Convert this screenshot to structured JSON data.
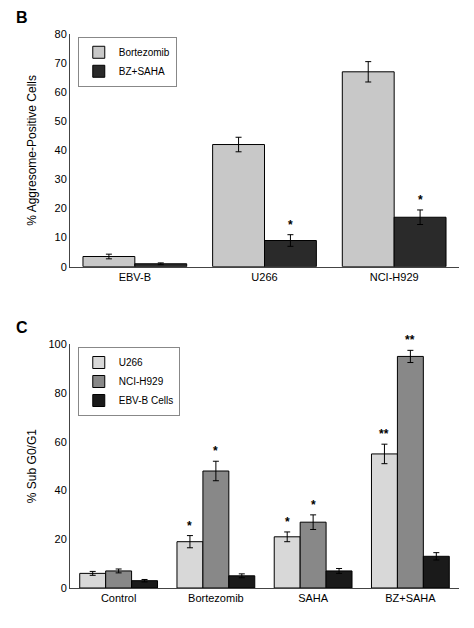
{
  "chart_data": [
    {
      "type": "bar",
      "title": "B",
      "ylabel": "% Aggresome-Positive Cells",
      "categories": [
        "EBV-B",
        "U266",
        "NCI-H929"
      ],
      "series": [
        {
          "name": "Bortezomib",
          "color": "#c8c8c8",
          "values": [
            3.5,
            42,
            67
          ],
          "errors": [
            0.8,
            2.5,
            3.5
          ]
        },
        {
          "name": "BZ+SAHA",
          "color": "#2a2a2a",
          "values": [
            1.0,
            9,
            17
          ],
          "errors": [
            0.3,
            2.0,
            2.5
          ]
        }
      ],
      "ylim": [
        0,
        80
      ],
      "yticks": [
        0,
        10,
        20,
        30,
        40,
        50,
        60,
        70,
        80
      ],
      "grid": false,
      "legend": "upper left",
      "annotations": [
        {
          "text": "*",
          "category": "U266",
          "series": "BZ+SAHA"
        },
        {
          "text": "*",
          "category": "NCI-H929",
          "series": "BZ+SAHA"
        }
      ]
    },
    {
      "type": "bar",
      "title": "C",
      "ylabel": "% Sub G0/G1",
      "categories": [
        "Control",
        "Bortezomib",
        "SAHA",
        "BZ+SAHA"
      ],
      "series": [
        {
          "name": "U266",
          "color": "#d8d8d8",
          "values": [
            6,
            19,
            21,
            55
          ],
          "errors": [
            0.8,
            2.5,
            2.0,
            4.0
          ]
        },
        {
          "name": "NCI-H929",
          "color": "#888888",
          "values": [
            7,
            48,
            27,
            95
          ],
          "errors": [
            0.8,
            4.0,
            3.0,
            2.5
          ]
        },
        {
          "name": "EBV-B Cells",
          "color": "#1a1a1a",
          "values": [
            3,
            5,
            7,
            13
          ],
          "errors": [
            0.5,
            0.8,
            1.0,
            1.5
          ]
        }
      ],
      "ylim": [
        0,
        100
      ],
      "yticks": [
        0,
        20,
        40,
        60,
        80,
        100
      ],
      "grid": false,
      "legend": "upper left",
      "annotations": [
        {
          "text": "*",
          "category": "Bortezomib",
          "series": "U266"
        },
        {
          "text": "*",
          "category": "SAHA",
          "series": "U266"
        },
        {
          "text": "**",
          "category": "BZ+SAHA",
          "series": "U266"
        },
        {
          "text": "*",
          "category": "Bortezomib",
          "series": "NCI-H929"
        },
        {
          "text": "*",
          "category": "SAHA",
          "series": "NCI-H929"
        },
        {
          "text": "**",
          "category": "BZ+SAHA",
          "series": "NCI-H929"
        }
      ]
    }
  ]
}
